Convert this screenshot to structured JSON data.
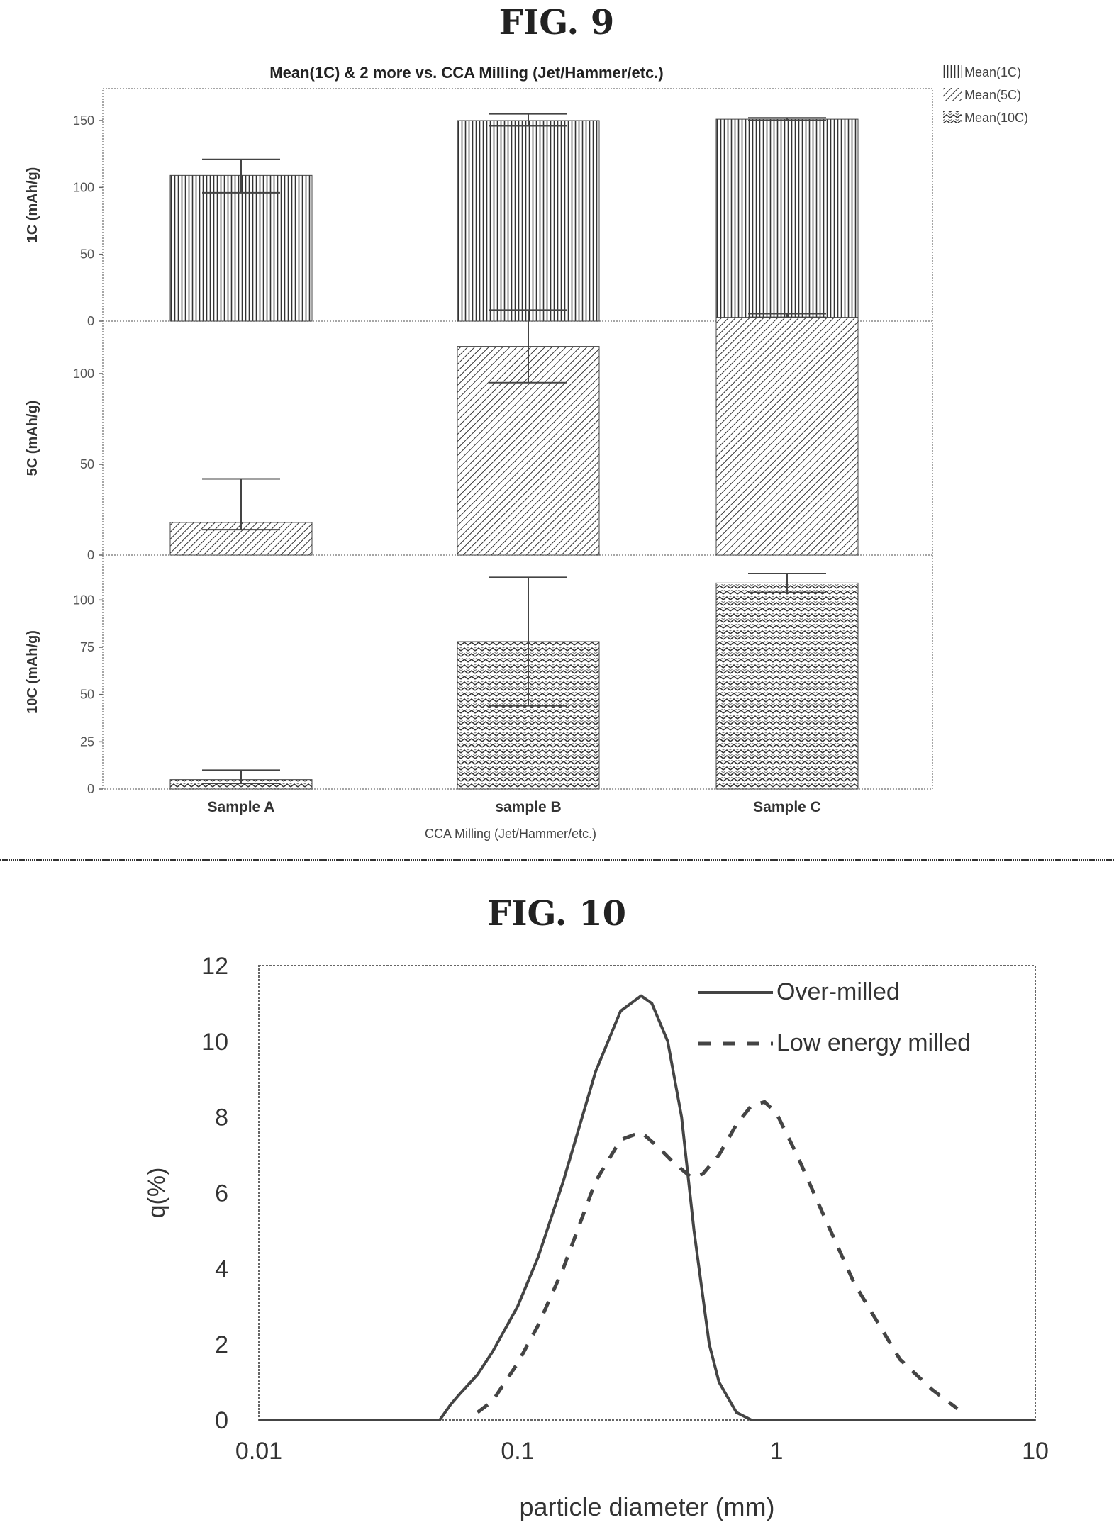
{
  "fig9": {
    "figure_label": "FIG. 9",
    "title": "Mean(1C) & 2 more vs. CCA Milling (Jet/Hammer/etc.)",
    "xlabel": "CCA Milling (Jet/Hammer/etc.)",
    "legend": [
      "Mean(1C)",
      "Mean(5C)",
      "Mean(10C)"
    ]
  },
  "fig10": {
    "figure_label": "FIG. 10",
    "legend": [
      "Over-milled",
      "Low energy milled"
    ]
  },
  "chart_data": [
    {
      "type": "bar",
      "title": "Mean(1C) & 2 more vs. CCA Milling (Jet/Hammer/etc.)",
      "xlabel": "CCA Milling (Jet/Hammer/etc.)",
      "categories": [
        "Sample A",
        "sample B",
        "Sample C"
      ],
      "panels": [
        {
          "name": "Mean(1C)",
          "ylabel": "1C (mAh/g)",
          "ylim": [
            0,
            150
          ],
          "yticks": [
            0,
            50,
            100,
            150
          ],
          "values": [
            109,
            150,
            151
          ],
          "error_low": [
            96,
            146,
            150
          ],
          "error_high": [
            121,
            155,
            152
          ],
          "pattern": "vertical"
        },
        {
          "name": "Mean(5C)",
          "ylabel": "5C (mAh/g)",
          "ylim": [
            0,
            125
          ],
          "yticks": [
            0,
            50,
            100
          ],
          "values": [
            18,
            115,
            131
          ],
          "error_low": [
            14,
            95,
            131
          ],
          "error_high": [
            42,
            135,
            133
          ],
          "pattern": "diagonal"
        },
        {
          "name": "Mean(10C)",
          "ylabel": "10C (mAh/g)",
          "ylim": [
            0,
            120
          ],
          "yticks": [
            0,
            25,
            50,
            75,
            100
          ],
          "values": [
            5,
            78,
            109
          ],
          "error_low": [
            3,
            44,
            104
          ],
          "error_high": [
            10,
            112,
            114
          ],
          "pattern": "crosshatch"
        }
      ]
    },
    {
      "type": "line",
      "xlabel": "particle diameter (mm)",
      "ylabel": "q(%)",
      "xscale": "log",
      "xlim": [
        0.01,
        10
      ],
      "ylim": [
        0,
        12
      ],
      "xticks": [
        0.01,
        0.1,
        1,
        10
      ],
      "xtick_labels": [
        "0.01",
        "0.1",
        "1",
        "10"
      ],
      "yticks": [
        0,
        2,
        4,
        6,
        8,
        10,
        12
      ],
      "series": [
        {
          "name": "Over-milled",
          "style": "solid",
          "x": [
            0.01,
            0.05,
            0.055,
            0.06,
            0.07,
            0.08,
            0.1,
            0.12,
            0.15,
            0.2,
            0.25,
            0.3,
            0.33,
            0.38,
            0.43,
            0.48,
            0.55,
            0.6,
            0.7,
            0.8,
            10
          ],
          "y": [
            0,
            0,
            0.4,
            0.7,
            1.2,
            1.8,
            3,
            4.3,
            6.3,
            9.2,
            10.8,
            11.2,
            11.0,
            10.0,
            8.0,
            5.0,
            2.0,
            1.0,
            0.2,
            0,
            0
          ]
        },
        {
          "name": "Low energy milled",
          "style": "dashed",
          "x": [
            0.07,
            0.08,
            0.1,
            0.12,
            0.15,
            0.2,
            0.25,
            0.3,
            0.35,
            0.4,
            0.47,
            0.52,
            0.6,
            0.7,
            0.8,
            0.9,
            1.0,
            1.2,
            1.5,
            2.0,
            2.5,
            3.0,
            4.0,
            5.0
          ],
          "y": [
            0.2,
            0.5,
            1.5,
            2.5,
            4.0,
            6.3,
            7.4,
            7.6,
            7.2,
            6.8,
            6.4,
            6.5,
            7.0,
            7.8,
            8.3,
            8.4,
            8.1,
            7.0,
            5.5,
            3.6,
            2.5,
            1.6,
            0.8,
            0.3
          ]
        }
      ]
    }
  ]
}
